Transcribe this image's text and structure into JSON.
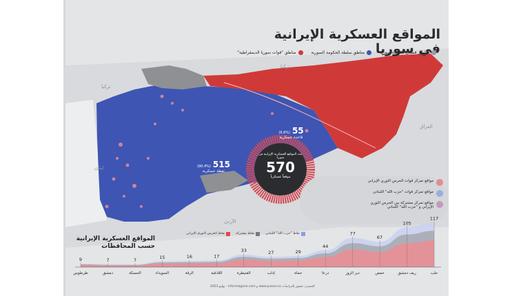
{
  "title": "المواقع العسكرية الإيرانية في سوريا",
  "legend_top": [
    {
      "label": "مناطق فصائل مسلحة سورية",
      "color": "#9a9b9e"
    },
    {
      "label": "مناطق سلطة الحكومة السورية",
      "color": "#3e55b3"
    },
    {
      "label": "مناطق \"قوات سوريا الديمقراطية\"",
      "color": "#cf3a38"
    }
  ],
  "countries": {
    "turkey_1": "تركيا",
    "turkey_2": "تركيا",
    "iraq": "العراق",
    "lebanon": "لبنان",
    "jordan": "الأردن"
  },
  "stats": {
    "total_caption": "عدد المواقع العسكرية الإيرانية في سوريا",
    "total_value": "570",
    "total_unit": "موقعاً عسكرياً",
    "bases_value": "55",
    "bases_unit": "قاعدة عسكرية",
    "bases_pct": "(9.6%)",
    "points_value": "515",
    "points_unit": "نقطة عسكرية",
    "points_pct": "(90.4%)"
  },
  "bubble_legend": [
    {
      "label": "مواقع تمركز قوات الحرس الثوري الإيراني",
      "color": "#e4515a"
    },
    {
      "label": "مواقع تمركز قوات \"حزب الله\" اللبناني",
      "color": "#6f8be0"
    },
    {
      "label": "مواقع تمركز مشتركة بين الحرس الثوري الإيراني و \"حزب الله\" اللبناني",
      "color": "#b06aa8"
    }
  ],
  "chart_title": "المواقع العسكرية الإيرانية حسب المحافظات",
  "chart_legend": [
    {
      "label": "نقاط \"حزب الله\" اللبناني",
      "color": "#8aa0e6"
    },
    {
      "label": "نقاط مشتركة",
      "color": "#777a80"
    },
    {
      "label": "نقاط الحرس الثوري الإيراني",
      "color": "#e0474f"
    }
  ],
  "chart_data": {
    "type": "area",
    "categories": [
      "حلب",
      "ريف دمشق",
      "حمص",
      "دير الزور",
      "درعا",
      "حماة",
      "إدلب",
      "القنيطرة",
      "اللاذقية",
      "الرقة",
      "السويداء",
      "الحسكة",
      "دمشق",
      "طرطوس"
    ],
    "values": [
      117,
      105,
      67,
      77,
      44,
      29,
      27,
      33,
      17,
      16,
      15,
      7,
      7,
      9
    ],
    "ylim": [
      0,
      120
    ]
  },
  "footer": "المصدر: جسور للدراسات www.jusoor.co و informagene.com - يوليو 2023"
}
